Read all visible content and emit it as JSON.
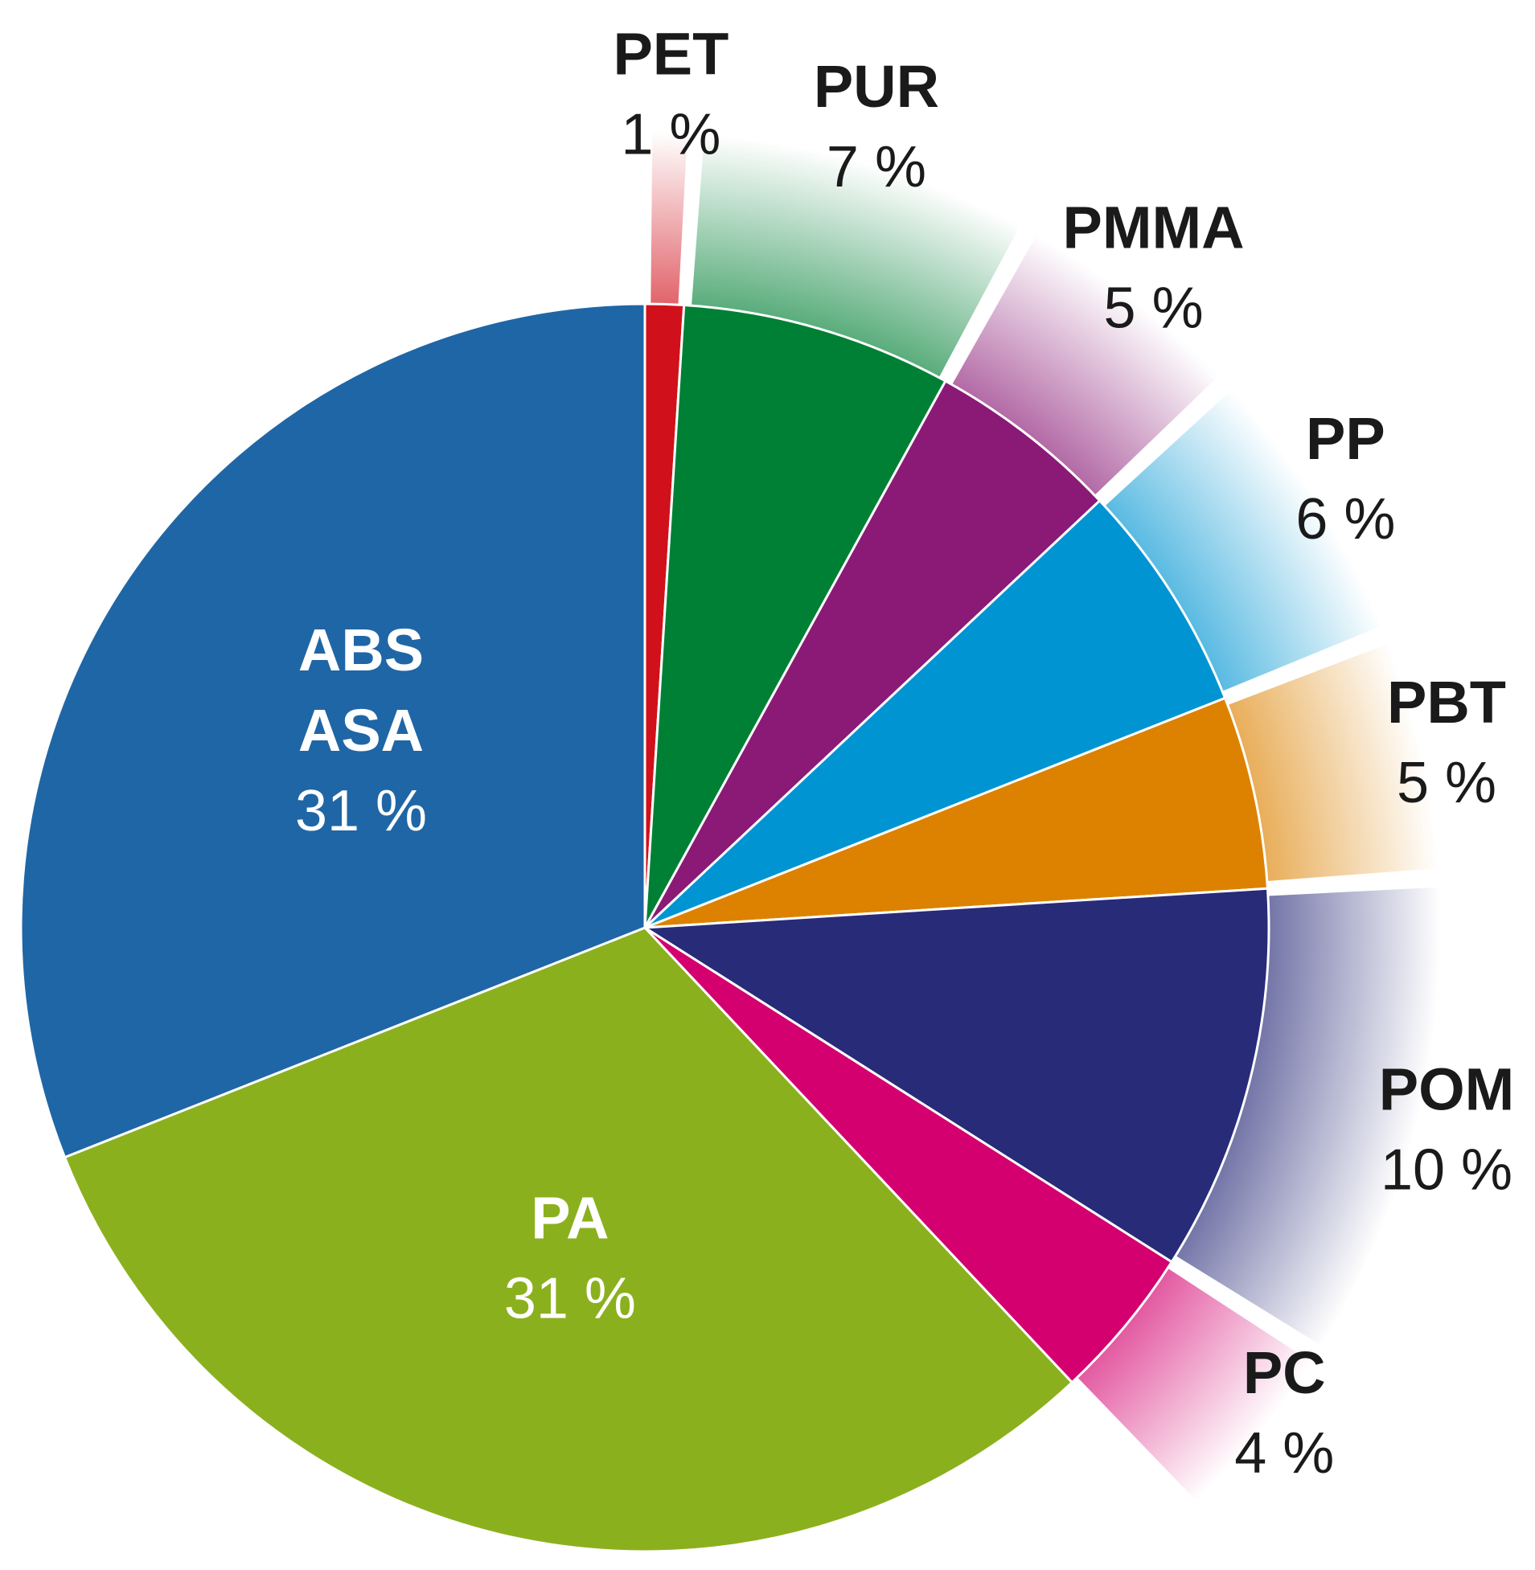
{
  "chart_data": {
    "type": "pie",
    "categories": [
      "PET",
      "PUR",
      "PMMA",
      "PP",
      "PBT",
      "POM",
      "PC",
      "PA",
      "ABS\nASA"
    ],
    "values": [
      1,
      7,
      5,
      6,
      5,
      10,
      4,
      31,
      31
    ],
    "value_labels": [
      "1 %",
      "7 %",
      "5 %",
      "6 %",
      "5 %",
      "10 %",
      "4 %",
      "31 %",
      "31 %"
    ],
    "colors": [
      "#d0111b",
      "#008035",
      "#8a1a76",
      "#0095d2",
      "#dc8200",
      "#282b78",
      "#d4006f",
      "#8bb01e",
      "#1f66a6"
    ]
  }
}
